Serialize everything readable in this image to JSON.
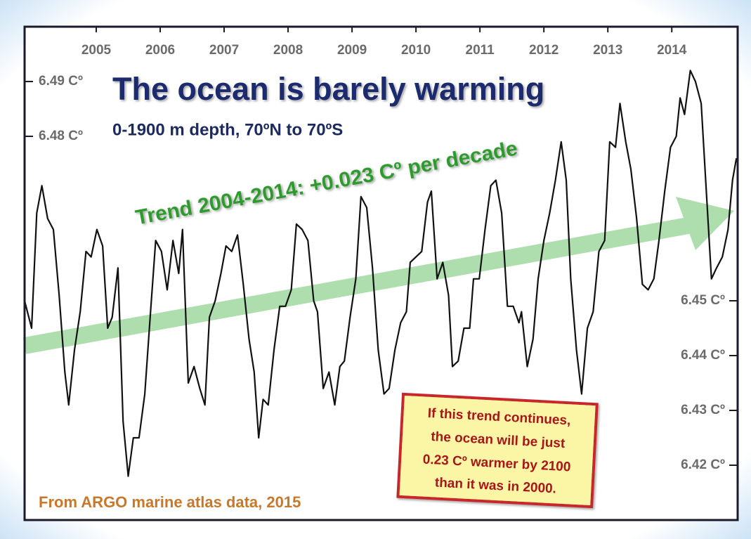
{
  "chart_data": {
    "type": "line",
    "title": "The ocean is barely warming",
    "subtitle": "0-1900 m depth, 70ºN to 70ºS",
    "trend_annotation": "Trend 2004-2014: +0.023 Cº per decade",
    "note": [
      "If this trend continues,",
      "the ocean will be just",
      "0.23 Cº warmer by 2100",
      "than it was in 2000."
    ],
    "source": "From ARGO marine atlas data, 2015",
    "xlim": [
      2003.88,
      2015.03
    ],
    "xticks": [
      2005,
      2006,
      2007,
      2008,
      2009,
      2010,
      2011,
      2012,
      2013,
      2014
    ],
    "ylim": [
      6.41,
      6.5
    ],
    "yticks": [
      {
        "value": 6.49,
        "label": "6.49 Cº"
      },
      {
        "value": 6.48,
        "label": "6.48 Cº"
      }
    ],
    "y2lim": [
      6.41,
      6.5
    ],
    "y2ticks": [
      {
        "value": 6.45,
        "label": "6.45 Cº"
      },
      {
        "value": 6.44,
        "label": "6.44 Cº"
      },
      {
        "value": 6.43,
        "label": "6.43 Cº"
      },
      {
        "value": 6.42,
        "label": "6.42 Cº"
      }
    ],
    "color": "#111111",
    "x": [
      2003.88,
      2003.99,
      2004.07,
      2004.15,
      2004.24,
      2004.33,
      2004.42,
      2004.51,
      2004.57,
      2004.66,
      2004.75,
      2004.84,
      2004.92,
      2005.01,
      2005.1,
      2005.18,
      2005.25,
      2005.34,
      2005.42,
      2005.5,
      2005.58,
      2005.67,
      2005.76,
      2005.85,
      2005.93,
      2006.02,
      2006.11,
      2006.2,
      2006.29,
      2006.35,
      2006.44,
      2006.53,
      2006.62,
      2006.7,
      2006.77,
      2006.86,
      2006.95,
      2007.03,
      2007.12,
      2007.21,
      2007.3,
      2007.39,
      2007.47,
      2007.54,
      2007.61,
      2007.69,
      2007.78,
      2007.87,
      2007.96,
      2008.05,
      2008.13,
      2008.22,
      2008.31,
      2008.4,
      2008.46,
      2008.55,
      2008.64,
      2008.73,
      2008.81,
      2008.88,
      2008.97,
      2009.06,
      2009.14,
      2009.23,
      2009.32,
      2009.41,
      2009.5,
      2009.58,
      2009.67,
      2009.76,
      2009.85,
      2009.91,
      2010.0,
      2010.09,
      2010.18,
      2010.24,
      2010.33,
      2010.42,
      2010.51,
      2010.57,
      2010.66,
      2010.75,
      2010.84,
      2010.9,
      2010.99,
      2011.08,
      2011.17,
      2011.25,
      2011.34,
      2011.43,
      2011.52,
      2011.61,
      2011.65,
      2011.74,
      2011.83,
      2011.91,
      2012.0,
      2012.09,
      2012.18,
      2012.27,
      2012.35,
      2012.42,
      2012.51,
      2012.59,
      2012.68,
      2012.77,
      2012.86,
      2012.95,
      2013.03,
      2013.12,
      2013.19,
      2013.28,
      2013.36,
      2013.45,
      2013.54,
      2013.63,
      2013.72,
      2013.8,
      2013.89,
      2013.98,
      2014.07,
      2014.13,
      2014.2,
      2014.29,
      2014.37,
      2014.46,
      2014.55,
      2014.62,
      2014.7,
      2014.79,
      2014.88,
      2014.95,
      2015.01
    ],
    "values": [
      6.45,
      6.445,
      6.466,
      6.471,
      6.465,
      6.463,
      6.451,
      6.437,
      6.431,
      6.441,
      6.448,
      6.459,
      6.458,
      6.463,
      6.46,
      6.445,
      6.447,
      6.456,
      6.428,
      6.418,
      6.425,
      6.425,
      6.433,
      6.448,
      6.461,
      6.459,
      6.452,
      6.461,
      6.455,
      6.463,
      6.435,
      6.438,
      6.434,
      6.431,
      6.447,
      6.45,
      6.455,
      6.46,
      6.459,
      6.462,
      6.453,
      6.443,
      6.437,
      6.425,
      6.432,
      6.431,
      6.441,
      6.449,
      6.449,
      6.452,
      6.464,
      6.463,
      6.461,
      6.45,
      6.448,
      6.434,
      6.437,
      6.431,
      6.438,
      6.439,
      6.447,
      6.454,
      6.469,
      6.467,
      6.456,
      6.441,
      6.433,
      6.434,
      6.441,
      6.446,
      6.448,
      6.457,
      6.458,
      6.459,
      6.468,
      6.47,
      6.454,
      6.457,
      6.451,
      6.438,
      6.439,
      6.445,
      6.445,
      6.454,
      6.454,
      6.463,
      6.471,
      6.472,
      6.466,
      6.449,
      6.449,
      6.446,
      6.448,
      6.438,
      6.443,
      6.454,
      6.461,
      6.466,
      6.472,
      6.479,
      6.472,
      6.454,
      6.441,
      6.433,
      6.445,
      6.448,
      6.459,
      6.461,
      6.479,
      6.478,
      6.486,
      6.479,
      6.474,
      6.465,
      6.453,
      6.452,
      6.454,
      6.461,
      6.47,
      6.478,
      6.48,
      6.487,
      6.484,
      6.492,
      6.49,
      6.486,
      6.468,
      6.454,
      6.456,
      6.458,
      6.463,
      6.472,
      6.476
    ]
  }
}
